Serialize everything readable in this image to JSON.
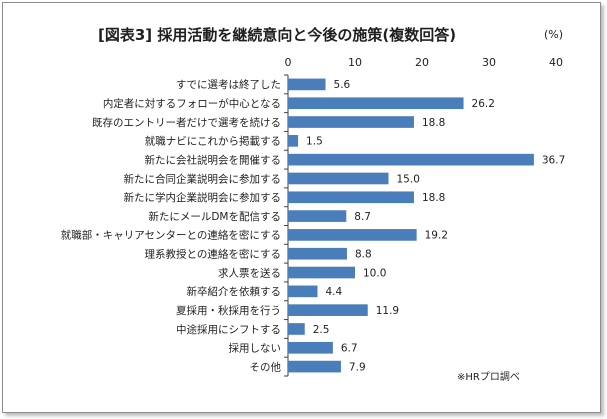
{
  "title": "[図表3] 採用活動を継続意向と今後の施策(複数回答)",
  "unit": "(%)",
  "source_note": "※HRプロ調べ",
  "colors": {
    "bar": "#4a7ebb",
    "axis": "#404040",
    "frame": "#8c8c8c"
  },
  "chart_data": {
    "type": "bar",
    "orientation": "horizontal",
    "title": "[図表3] 採用活動を継続意向と今後の施策(複数回答)",
    "xlim": [
      0,
      40
    ],
    "ticks": [
      0,
      10,
      20,
      30,
      40
    ],
    "tick_labels": [
      "0",
      "10",
      "20",
      "30",
      "40"
    ],
    "grid": false,
    "categories": [
      "すでに選考は終了した",
      "内定者に対するフォローが中心となる",
      "既存のエントリー者だけで選考を続ける",
      "就職ナビにこれから掲載する",
      "新たに会社説明会を開催する",
      "新たに合同企業説明会に参加する",
      "新たに学内企業説明会に参加する",
      "新たにメールDMを配信する",
      "就職部・キャリアセンターとの連絡を密にする",
      "理系教授との連絡を密にする",
      "求人票を送る",
      "新卒紹介を依頼する",
      "夏採用・秋採用を行う",
      "中途採用にシフトする",
      "採用しない",
      "その他"
    ],
    "values": [
      5.6,
      26.2,
      18.8,
      1.5,
      36.7,
      15.0,
      18.8,
      8.7,
      19.2,
      8.8,
      10.0,
      4.4,
      11.9,
      2.5,
      6.7,
      7.9
    ],
    "value_labels": [
      "5.6",
      "26.2",
      "18.8",
      "1.5",
      "36.7",
      "15.0",
      "18.8",
      "8.7",
      "19.2",
      "8.8",
      "10.0",
      "4.4",
      "11.9",
      "2.5",
      "6.7",
      "7.9"
    ]
  }
}
